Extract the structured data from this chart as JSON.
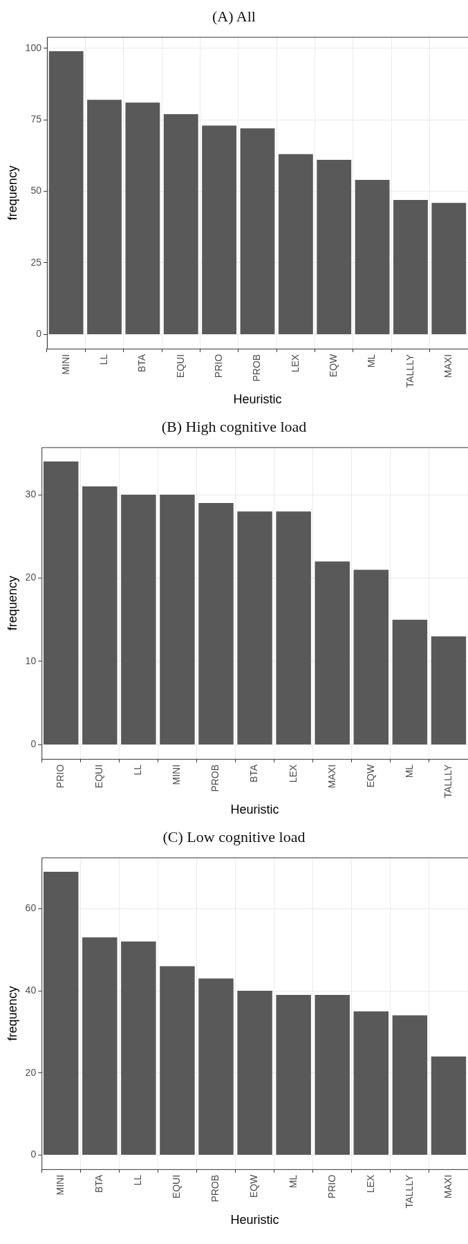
{
  "chart_data": [
    {
      "type": "bar",
      "title": "(A) All",
      "xlabel": "Heuristic",
      "ylabel": "frequency",
      "categories": [
        "MINI",
        "LL",
        "BTA",
        "EQUI",
        "PRIO",
        "PROB",
        "LEX",
        "EQW",
        "ML",
        "TALLLY",
        "MAXI"
      ],
      "values": [
        99,
        82,
        81,
        77,
        73,
        72,
        63,
        61,
        54,
        47,
        46
      ],
      "color": "#595959",
      "ylim": [
        -4.95,
        103.95
      ],
      "yticks": [
        0,
        25,
        50,
        75,
        100
      ],
      "grid": true
    },
    {
      "type": "bar",
      "title": "(B) High cognitive load",
      "xlabel": "Heuristic",
      "ylabel": "frequency",
      "categories": [
        "PRIO",
        "EQUI",
        "LL",
        "MINI",
        "PROB",
        "BTA",
        "LEX",
        "MAXI",
        "EQW",
        "ML",
        "TALLLY"
      ],
      "values": [
        34,
        31,
        30,
        30,
        29,
        28,
        28,
        22,
        21,
        15,
        13
      ],
      "color": "#595959",
      "ylim": [
        -1.7,
        35.7
      ],
      "yticks": [
        0,
        10,
        20,
        30
      ],
      "grid": true
    },
    {
      "type": "bar",
      "title": "(C) Low cognitive load",
      "xlabel": "Heuristic",
      "ylabel": "frequency",
      "categories": [
        "MINI",
        "BTA",
        "LL",
        "EQUI",
        "PROB",
        "EQW",
        "ML",
        "PRIO",
        "LEX",
        "TALLLY",
        "MAXI"
      ],
      "values": [
        69,
        53,
        52,
        46,
        43,
        40,
        39,
        39,
        35,
        34,
        24
      ],
      "color": "#595959",
      "ylim": [
        -3.45,
        72.45
      ],
      "yticks": [
        0,
        20,
        40,
        60
      ],
      "grid": true
    }
  ]
}
